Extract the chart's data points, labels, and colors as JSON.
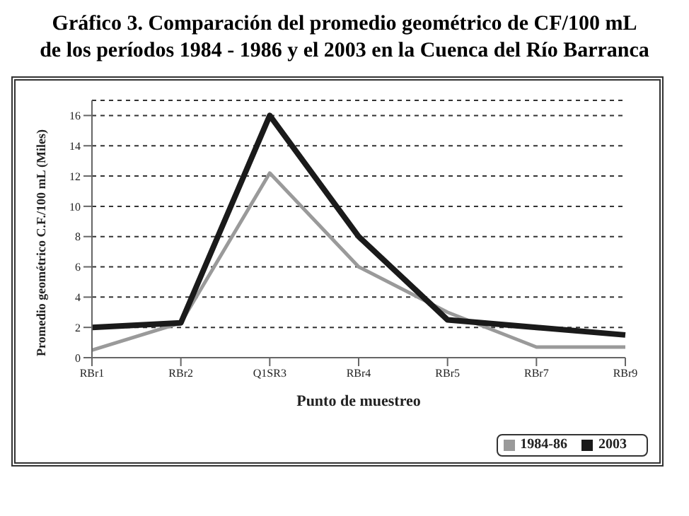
{
  "chart_data": {
    "type": "line",
    "title": "Gráfico 3. Comparación del promedio geométrico de CF/100 mL de los períodos 1984 - 1986 y el 2003 en la Cuenca del Río Barranca",
    "xlabel": "Punto de muestreo",
    "ylabel": "Promedio geométrico C.F./100 mL (Miles)",
    "categories": [
      "RBr1",
      "RBr2",
      "Q1SR3",
      "RBr4",
      "RBr5",
      "RBr7",
      "RBr9"
    ],
    "series": [
      {
        "name": "1984-86",
        "color": "#9a9a9a",
        "values": [
          0.5,
          2.3,
          12.2,
          6,
          3,
          0.7,
          0.7
        ]
      },
      {
        "name": "2003",
        "color": "#1a1a1a",
        "values": [
          2,
          2.3,
          16,
          8,
          2.5,
          2,
          1.5
        ]
      }
    ],
    "ylim": [
      0,
      17
    ],
    "yticks": [
      0,
      2,
      4,
      6,
      8,
      10,
      12,
      14,
      16
    ],
    "grid": "y",
    "legend": "bottom right",
    "marker": "none",
    "line_style": "solid"
  }
}
